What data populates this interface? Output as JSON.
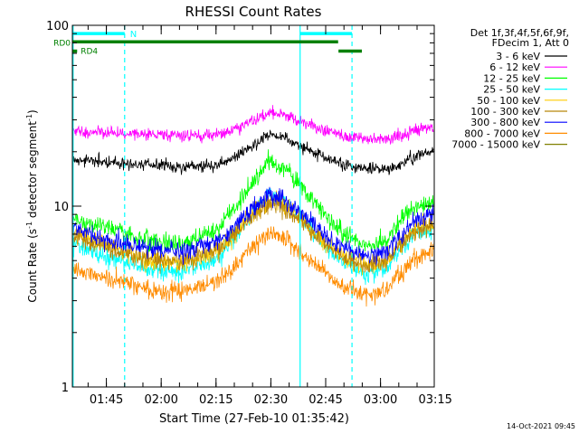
{
  "chart_data": {
    "type": "line",
    "title": "RHESSI Count Rates",
    "xlabel": "Start Time (27-Feb-10 01:35:42)",
    "ylabel_main": "Count Rate (s",
    "ylabel_sup": "-1",
    "ylabel_tail": " detector segment",
    "ylabel_end": ")",
    "yscale": "log",
    "ylim": [
      1,
      100
    ],
    "y_ticks": [
      {
        "value": 1,
        "label": "1"
      },
      {
        "value": 10,
        "label": "10"
      },
      {
        "value": 100,
        "label": "100"
      }
    ],
    "x_range_minutes": [
      0,
      99
    ],
    "x_ticks": [
      {
        "minute": 9.3,
        "label": "01:45"
      },
      {
        "minute": 24.3,
        "label": "02:00"
      },
      {
        "minute": 39.3,
        "label": "02:15"
      },
      {
        "minute": 54.3,
        "label": "02:30"
      },
      {
        "minute": 69.3,
        "label": "02:45"
      },
      {
        "minute": 84.3,
        "label": "03:00"
      },
      {
        "minute": 99.3,
        "label": "03:15"
      }
    ],
    "legend_header": [
      "Det 1f,3f,4f,5f,6f,9f,",
      "FDecim 1, Att 0"
    ],
    "series": [
      {
        "name": "3 - 6 keV",
        "color": "#000000",
        "x": [
          0,
          10,
          20,
          30,
          40,
          45,
          50,
          54,
          58,
          65,
          72,
          80,
          86,
          90,
          94,
          99
        ],
        "values": [
          18,
          17.5,
          17,
          16.5,
          17,
          19,
          22,
          25,
          24,
          20,
          17.5,
          16,
          16,
          17,
          19,
          20
        ]
      },
      {
        "name": "6 - 12 keV",
        "color": "#ff00ff",
        "x": [
          0,
          10,
          20,
          30,
          40,
          45,
          50,
          54,
          58,
          65,
          72,
          80,
          86,
          90,
          94,
          99
        ],
        "values": [
          26,
          25.5,
          25,
          24.5,
          25,
          27,
          30,
          33,
          32,
          28,
          25,
          23.5,
          23.5,
          24.5,
          26.5,
          27.5
        ]
      },
      {
        "name": "12 - 25 keV",
        "color": "#00ff00",
        "x": [
          0,
          10,
          20,
          30,
          40,
          45,
          50,
          54,
          58,
          65,
          72,
          80,
          86,
          90,
          94,
          99
        ],
        "values": [
          8.5,
          7.5,
          6.5,
          6.2,
          7.5,
          10,
          14,
          18,
          16,
          11,
          7.5,
          6,
          6.5,
          8.5,
          10,
          10.5
        ]
      },
      {
        "name": "25 - 50 keV",
        "color": "#00ffff",
        "x": [
          0,
          10,
          20,
          30,
          40,
          45,
          50,
          54,
          58,
          65,
          72,
          80,
          86,
          90,
          94,
          99
        ],
        "values": [
          6.2,
          5.2,
          4.5,
          4.3,
          5.2,
          7,
          9.5,
          11.5,
          10.5,
          7.5,
          5.2,
          4.2,
          4.5,
          5.8,
          7,
          7.5
        ]
      },
      {
        "name": "50 - 100 keV",
        "color": "#ffcc00",
        "x": [
          0,
          10,
          20,
          30,
          40,
          45,
          50,
          54,
          58,
          65,
          72,
          80,
          86,
          90,
          94,
          99
        ],
        "values": [
          7,
          6,
          5,
          4.8,
          5.6,
          7.3,
          9.5,
          11,
          10,
          7.5,
          5.5,
          4.6,
          5,
          6.3,
          7.5,
          8
        ]
      },
      {
        "name": "100 - 300 keV",
        "color": "#b8860b",
        "x": [
          0,
          10,
          20,
          30,
          40,
          45,
          50,
          54,
          58,
          65,
          72,
          80,
          86,
          90,
          94,
          99
        ],
        "values": [
          6.8,
          5.9,
          5.1,
          4.9,
          5.7,
          7.2,
          9.2,
          10.5,
          9.7,
          7.4,
          5.5,
          4.7,
          5,
          6.2,
          7.3,
          7.8
        ]
      },
      {
        "name": "300 - 800 keV",
        "color": "#0000ff",
        "x": [
          0,
          10,
          20,
          30,
          40,
          45,
          50,
          54,
          58,
          65,
          72,
          80,
          86,
          90,
          94,
          99
        ],
        "values": [
          7.5,
          6.5,
          5.8,
          5.6,
          6.4,
          8,
          10,
          11.5,
          10.8,
          8.2,
          6.2,
          5.3,
          5.6,
          7,
          8.4,
          9
        ]
      },
      {
        "name": "800 - 7000 keV",
        "color": "#ff8c00",
        "x": [
          0,
          10,
          20,
          30,
          40,
          45,
          50,
          54,
          58,
          65,
          72,
          80,
          86,
          90,
          94,
          99
        ],
        "values": [
          4.5,
          4,
          3.5,
          3.3,
          3.8,
          4.8,
          6.2,
          7.2,
          6.6,
          5,
          3.8,
          3.2,
          3.4,
          4.3,
          5.2,
          5.6
        ]
      },
      {
        "name": "7000 - 15000 keV",
        "color": "#808000",
        "x": [],
        "values": []
      }
    ],
    "attenuator_lines": [
      {
        "label": "N",
        "color": "#00ffff",
        "value": 90,
        "segments": [
          [
            0,
            14.3
          ],
          [
            62.3,
            76.5
          ]
        ]
      },
      {
        "label": "RD0",
        "color": "#008000",
        "value": 81,
        "segments": [
          [
            0,
            72.7
          ]
        ]
      },
      {
        "label": "RD4",
        "color": "#008000",
        "value": 72,
        "segments": [
          [
            0,
            1.3
          ],
          [
            72.8,
            79.2
          ]
        ]
      }
    ],
    "vertical_lines": [
      {
        "minute": 0.2,
        "style": "solid",
        "color": "#00ffff"
      },
      {
        "minute": 14.3,
        "style": "dashed",
        "color": "#00ffff"
      },
      {
        "minute": 62.3,
        "style": "solid",
        "color": "#00ffff"
      },
      {
        "minute": 76.5,
        "style": "dashed",
        "color": "#00ffff"
      }
    ],
    "footer_timestamp": "14-Oct-2021 09:45"
  }
}
